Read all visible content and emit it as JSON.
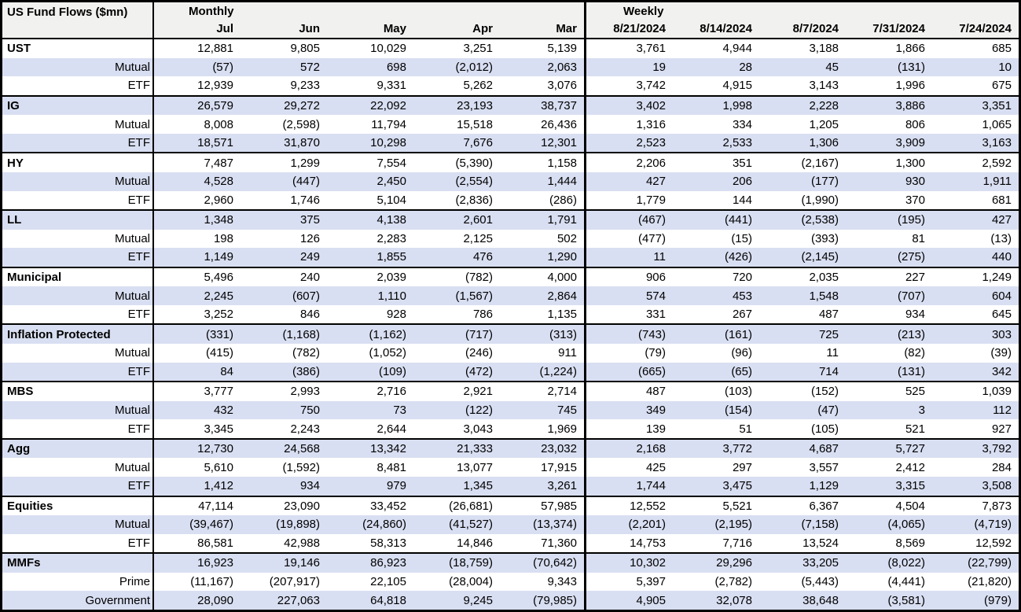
{
  "title": "US Fund Flows ($mn)",
  "sections": {
    "monthly": "Monthly",
    "weekly": "Weekly"
  },
  "columns": {
    "monthly": [
      "Jul",
      "Jun",
      "May",
      "Apr",
      "Mar"
    ],
    "weekly": [
      "8/21/2024",
      "8/14/2024",
      "8/7/2024",
      "7/31/2024",
      "7/24/2024"
    ]
  },
  "colors": {
    "stripe_bg": "#d9dff2",
    "header_bg": "#f1f1ef",
    "border": "#000000",
    "text": "#000000"
  },
  "rows": [
    {
      "label": "UST",
      "type": "group",
      "monthly": [
        "12,881",
        "9,805",
        "10,029",
        "3,251",
        "5,139"
      ],
      "weekly": [
        "3,761",
        "4,944",
        "3,188",
        "1,866",
        "685"
      ]
    },
    {
      "label": "Mutual",
      "type": "sub",
      "monthly": [
        "(57)",
        "572",
        "698",
        "(2,012)",
        "2,063"
      ],
      "weekly": [
        "19",
        "28",
        "45",
        "(131)",
        "10"
      ]
    },
    {
      "label": "ETF",
      "type": "sub",
      "monthly": [
        "12,939",
        "9,233",
        "9,331",
        "5,262",
        "3,076"
      ],
      "weekly": [
        "3,742",
        "4,915",
        "3,143",
        "1,996",
        "675"
      ]
    },
    {
      "label": "IG",
      "type": "group",
      "monthly": [
        "26,579",
        "29,272",
        "22,092",
        "23,193",
        "38,737"
      ],
      "weekly": [
        "3,402",
        "1,998",
        "2,228",
        "3,886",
        "3,351"
      ]
    },
    {
      "label": "Mutual",
      "type": "sub",
      "monthly": [
        "8,008",
        "(2,598)",
        "11,794",
        "15,518",
        "26,436"
      ],
      "weekly": [
        "1,316",
        "334",
        "1,205",
        "806",
        "1,065"
      ]
    },
    {
      "label": "ETF",
      "type": "sub",
      "monthly": [
        "18,571",
        "31,870",
        "10,298",
        "7,676",
        "12,301"
      ],
      "weekly": [
        "2,523",
        "2,533",
        "1,306",
        "3,909",
        "3,163"
      ]
    },
    {
      "label": "HY",
      "type": "group",
      "monthly": [
        "7,487",
        "1,299",
        "7,554",
        "(5,390)",
        "1,158"
      ],
      "weekly": [
        "2,206",
        "351",
        "(2,167)",
        "1,300",
        "2,592"
      ]
    },
    {
      "label": "Mutual",
      "type": "sub",
      "monthly": [
        "4,528",
        "(447)",
        "2,450",
        "(2,554)",
        "1,444"
      ],
      "weekly": [
        "427",
        "206",
        "(177)",
        "930",
        "1,911"
      ]
    },
    {
      "label": "ETF",
      "type": "sub",
      "monthly": [
        "2,960",
        "1,746",
        "5,104",
        "(2,836)",
        "(286)"
      ],
      "weekly": [
        "1,779",
        "144",
        "(1,990)",
        "370",
        "681"
      ]
    },
    {
      "label": "LL",
      "type": "group",
      "monthly": [
        "1,348",
        "375",
        "4,138",
        "2,601",
        "1,791"
      ],
      "weekly": [
        "(467)",
        "(441)",
        "(2,538)",
        "(195)",
        "427"
      ]
    },
    {
      "label": "Mutual",
      "type": "sub",
      "monthly": [
        "198",
        "126",
        "2,283",
        "2,125",
        "502"
      ],
      "weekly": [
        "(477)",
        "(15)",
        "(393)",
        "81",
        "(13)"
      ]
    },
    {
      "label": "ETF",
      "type": "sub",
      "monthly": [
        "1,149",
        "249",
        "1,855",
        "476",
        "1,290"
      ],
      "weekly": [
        "11",
        "(426)",
        "(2,145)",
        "(275)",
        "440"
      ]
    },
    {
      "label": "Municipal",
      "type": "group",
      "monthly": [
        "5,496",
        "240",
        "2,039",
        "(782)",
        "4,000"
      ],
      "weekly": [
        "906",
        "720",
        "2,035",
        "227",
        "1,249"
      ]
    },
    {
      "label": "Mutual",
      "type": "sub",
      "monthly": [
        "2,245",
        "(607)",
        "1,110",
        "(1,567)",
        "2,864"
      ],
      "weekly": [
        "574",
        "453",
        "1,548",
        "(707)",
        "604"
      ]
    },
    {
      "label": "ETF",
      "type": "sub",
      "monthly": [
        "3,252",
        "846",
        "928",
        "786",
        "1,135"
      ],
      "weekly": [
        "331",
        "267",
        "487",
        "934",
        "645"
      ]
    },
    {
      "label": "Inflation Protected",
      "type": "group",
      "monthly": [
        "(331)",
        "(1,168)",
        "(1,162)",
        "(717)",
        "(313)"
      ],
      "weekly": [
        "(743)",
        "(161)",
        "725",
        "(213)",
        "303"
      ]
    },
    {
      "label": "Mutual",
      "type": "sub",
      "monthly": [
        "(415)",
        "(782)",
        "(1,052)",
        "(246)",
        "911"
      ],
      "weekly": [
        "(79)",
        "(96)",
        "11",
        "(82)",
        "(39)"
      ]
    },
    {
      "label": "ETF",
      "type": "sub",
      "monthly": [
        "84",
        "(386)",
        "(109)",
        "(472)",
        "(1,224)"
      ],
      "weekly": [
        "(665)",
        "(65)",
        "714",
        "(131)",
        "342"
      ]
    },
    {
      "label": "MBS",
      "type": "group",
      "monthly": [
        "3,777",
        "2,993",
        "2,716",
        "2,921",
        "2,714"
      ],
      "weekly": [
        "487",
        "(103)",
        "(152)",
        "525",
        "1,039"
      ]
    },
    {
      "label": "Mutual",
      "type": "sub",
      "monthly": [
        "432",
        "750",
        "73",
        "(122)",
        "745"
      ],
      "weekly": [
        "349",
        "(154)",
        "(47)",
        "3",
        "112"
      ]
    },
    {
      "label": "ETF",
      "type": "sub",
      "monthly": [
        "3,345",
        "2,243",
        "2,644",
        "3,043",
        "1,969"
      ],
      "weekly": [
        "139",
        "51",
        "(105)",
        "521",
        "927"
      ]
    },
    {
      "label": "Agg",
      "type": "group",
      "monthly": [
        "12,730",
        "24,568",
        "13,342",
        "21,333",
        "23,032"
      ],
      "weekly": [
        "2,168",
        "3,772",
        "4,687",
        "5,727",
        "3,792"
      ]
    },
    {
      "label": "Mutual",
      "type": "sub",
      "monthly": [
        "5,610",
        "(1,592)",
        "8,481",
        "13,077",
        "17,915"
      ],
      "weekly": [
        "425",
        "297",
        "3,557",
        "2,412",
        "284"
      ]
    },
    {
      "label": "ETF",
      "type": "sub",
      "monthly": [
        "1,412",
        "934",
        "979",
        "1,345",
        "3,261"
      ],
      "weekly": [
        "1,744",
        "3,475",
        "1,129",
        "3,315",
        "3,508"
      ]
    },
    {
      "label": "Equities",
      "type": "group",
      "monthly": [
        "47,114",
        "23,090",
        "33,452",
        "(26,681)",
        "57,985"
      ],
      "weekly": [
        "12,552",
        "5,521",
        "6,367",
        "4,504",
        "7,873"
      ]
    },
    {
      "label": "Mutual",
      "type": "sub",
      "monthly": [
        "(39,467)",
        "(19,898)",
        "(24,860)",
        "(41,527)",
        "(13,374)"
      ],
      "weekly": [
        "(2,201)",
        "(2,195)",
        "(7,158)",
        "(4,065)",
        "(4,719)"
      ]
    },
    {
      "label": "ETF",
      "type": "sub",
      "monthly": [
        "86,581",
        "42,988",
        "58,313",
        "14,846",
        "71,360"
      ],
      "weekly": [
        "14,753",
        "7,716",
        "13,524",
        "8,569",
        "12,592"
      ]
    },
    {
      "label": "MMFs",
      "type": "group",
      "monthly": [
        "16,923",
        "19,146",
        "86,923",
        "(18,759)",
        "(70,642)"
      ],
      "weekly": [
        "10,302",
        "29,296",
        "33,205",
        "(8,022)",
        "(22,799)"
      ]
    },
    {
      "label": "Prime",
      "type": "sub",
      "monthly": [
        "(11,167)",
        "(207,917)",
        "22,105",
        "(28,004)",
        "9,343"
      ],
      "weekly": [
        "5,397",
        "(2,782)",
        "(5,443)",
        "(4,441)",
        "(21,820)"
      ]
    },
    {
      "label": "Government",
      "type": "sub",
      "monthly": [
        "28,090",
        "227,063",
        "64,818",
        "9,245",
        "(79,985)"
      ],
      "weekly": [
        "4,905",
        "32,078",
        "38,648",
        "(3,581)",
        "(979)"
      ]
    }
  ],
  "chart_data": {
    "type": "table",
    "title": "US Fund Flows ($mn)",
    "column_groups": [
      "Monthly",
      "Weekly"
    ],
    "monthly_columns": [
      "Jul",
      "Jun",
      "May",
      "Apr",
      "Mar"
    ],
    "weekly_columns": [
      "8/21/2024",
      "8/14/2024",
      "8/7/2024",
      "7/31/2024",
      "7/24/2024"
    ],
    "rows": [
      {
        "label": "UST",
        "level": "group",
        "monthly": [
          12881,
          9805,
          10029,
          3251,
          5139
        ],
        "weekly": [
          3761,
          4944,
          3188,
          1866,
          685
        ]
      },
      {
        "label": "Mutual",
        "level": "sub",
        "monthly": [
          -57,
          572,
          698,
          -2012,
          2063
        ],
        "weekly": [
          19,
          28,
          45,
          -131,
          10
        ]
      },
      {
        "label": "ETF",
        "level": "sub",
        "monthly": [
          12939,
          9233,
          9331,
          5262,
          3076
        ],
        "weekly": [
          3742,
          4915,
          3143,
          1996,
          675
        ]
      },
      {
        "label": "IG",
        "level": "group",
        "monthly": [
          26579,
          29272,
          22092,
          23193,
          38737
        ],
        "weekly": [
          3402,
          1998,
          2228,
          3886,
          3351
        ]
      },
      {
        "label": "Mutual",
        "level": "sub",
        "monthly": [
          8008,
          -2598,
          11794,
          15518,
          26436
        ],
        "weekly": [
          1316,
          334,
          1205,
          806,
          1065
        ]
      },
      {
        "label": "ETF",
        "level": "sub",
        "monthly": [
          18571,
          31870,
          10298,
          7676,
          12301
        ],
        "weekly": [
          2523,
          2533,
          1306,
          3909,
          3163
        ]
      },
      {
        "label": "HY",
        "level": "group",
        "monthly": [
          7487,
          1299,
          7554,
          -5390,
          1158
        ],
        "weekly": [
          2206,
          351,
          -2167,
          1300,
          2592
        ]
      },
      {
        "label": "Mutual",
        "level": "sub",
        "monthly": [
          4528,
          -447,
          2450,
          -2554,
          1444
        ],
        "weekly": [
          427,
          206,
          -177,
          930,
          1911
        ]
      },
      {
        "label": "ETF",
        "level": "sub",
        "monthly": [
          2960,
          1746,
          5104,
          -2836,
          -286
        ],
        "weekly": [
          1779,
          144,
          -1990,
          370,
          681
        ]
      },
      {
        "label": "LL",
        "level": "group",
        "monthly": [
          1348,
          375,
          4138,
          2601,
          1791
        ],
        "weekly": [
          -467,
          -441,
          -2538,
          -195,
          427
        ]
      },
      {
        "label": "Mutual",
        "level": "sub",
        "monthly": [
          198,
          126,
          2283,
          2125,
          502
        ],
        "weekly": [
          -477,
          -15,
          -393,
          81,
          -13
        ]
      },
      {
        "label": "ETF",
        "level": "sub",
        "monthly": [
          1149,
          249,
          1855,
          476,
          1290
        ],
        "weekly": [
          11,
          -426,
          -2145,
          -275,
          440
        ]
      },
      {
        "label": "Municipal",
        "level": "group",
        "monthly": [
          5496,
          240,
          2039,
          -782,
          4000
        ],
        "weekly": [
          906,
          720,
          2035,
          227,
          1249
        ]
      },
      {
        "label": "Mutual",
        "level": "sub",
        "monthly": [
          2245,
          -607,
          1110,
          -1567,
          2864
        ],
        "weekly": [
          574,
          453,
          1548,
          -707,
          604
        ]
      },
      {
        "label": "ETF",
        "level": "sub",
        "monthly": [
          3252,
          846,
          928,
          786,
          1135
        ],
        "weekly": [
          331,
          267,
          487,
          934,
          645
        ]
      },
      {
        "label": "Inflation Protected",
        "level": "group",
        "monthly": [
          -331,
          -1168,
          -1162,
          -717,
          -313
        ],
        "weekly": [
          -743,
          -161,
          725,
          -213,
          303
        ]
      },
      {
        "label": "Mutual",
        "level": "sub",
        "monthly": [
          -415,
          -782,
          -1052,
          -246,
          911
        ],
        "weekly": [
          -79,
          -96,
          11,
          -82,
          -39
        ]
      },
      {
        "label": "ETF",
        "level": "sub",
        "monthly": [
          84,
          -386,
          -109,
          -472,
          -1224
        ],
        "weekly": [
          -665,
          -65,
          714,
          -131,
          342
        ]
      },
      {
        "label": "MBS",
        "level": "group",
        "monthly": [
          3777,
          2993,
          2716,
          2921,
          2714
        ],
        "weekly": [
          487,
          -103,
          -152,
          525,
          1039
        ]
      },
      {
        "label": "Mutual",
        "level": "sub",
        "monthly": [
          432,
          750,
          73,
          -122,
          745
        ],
        "weekly": [
          349,
          -154,
          -47,
          3,
          112
        ]
      },
      {
        "label": "ETF",
        "level": "sub",
        "monthly": [
          3345,
          2243,
          2644,
          3043,
          1969
        ],
        "weekly": [
          139,
          51,
          -105,
          521,
          927
        ]
      },
      {
        "label": "Agg",
        "level": "group",
        "monthly": [
          12730,
          24568,
          13342,
          21333,
          23032
        ],
        "weekly": [
          2168,
          3772,
          4687,
          5727,
          3792
        ]
      },
      {
        "label": "Mutual",
        "level": "sub",
        "monthly": [
          5610,
          -1592,
          8481,
          13077,
          17915
        ],
        "weekly": [
          425,
          297,
          3557,
          2412,
          284
        ]
      },
      {
        "label": "ETF",
        "level": "sub",
        "monthly": [
          1412,
          934,
          979,
          1345,
          3261
        ],
        "weekly": [
          1744,
          3475,
          1129,
          3315,
          3508
        ]
      },
      {
        "label": "Equities",
        "level": "group",
        "monthly": [
          47114,
          23090,
          33452,
          -26681,
          57985
        ],
        "weekly": [
          12552,
          5521,
          6367,
          4504,
          7873
        ]
      },
      {
        "label": "Mutual",
        "level": "sub",
        "monthly": [
          -39467,
          -19898,
          -24860,
          -41527,
          -13374
        ],
        "weekly": [
          -2201,
          -2195,
          -7158,
          -4065,
          -4719
        ]
      },
      {
        "label": "ETF",
        "level": "sub",
        "monthly": [
          86581,
          42988,
          58313,
          14846,
          71360
        ],
        "weekly": [
          14753,
          7716,
          13524,
          8569,
          12592
        ]
      },
      {
        "label": "MMFs",
        "level": "group",
        "monthly": [
          16923,
          19146,
          86923,
          -18759,
          -70642
        ],
        "weekly": [
          10302,
          29296,
          33205,
          -8022,
          -22799
        ]
      },
      {
        "label": "Prime",
        "level": "sub",
        "monthly": [
          -11167,
          -207917,
          22105,
          -28004,
          9343
        ],
        "weekly": [
          5397,
          -2782,
          -5443,
          -4441,
          -21820
        ]
      },
      {
        "label": "Government",
        "level": "sub",
        "monthly": [
          28090,
          227063,
          64818,
          9245,
          -79985
        ],
        "weekly": [
          4905,
          32078,
          38648,
          -3581,
          -979
        ]
      }
    ]
  }
}
